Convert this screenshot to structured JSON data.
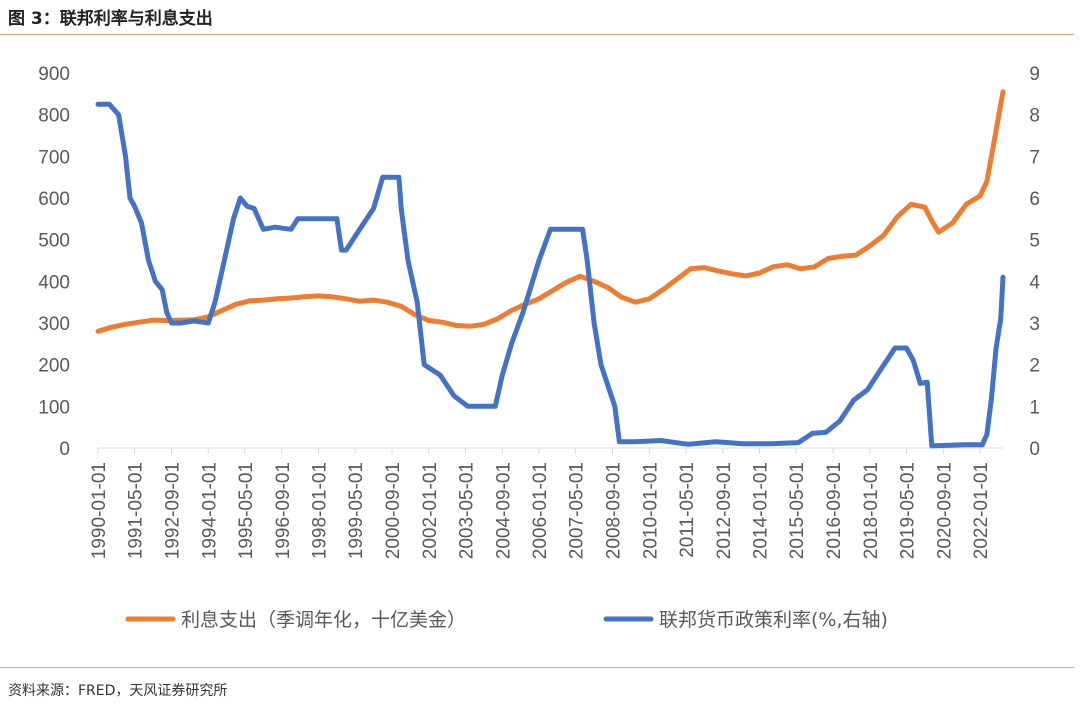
{
  "header": {
    "title": "图 3：联邦利率与利息支出"
  },
  "footer": {
    "source": "资料来源：FRED，天风证券研究所"
  },
  "chart_data": {
    "type": "line",
    "title": "图 3：联邦利率与利息支出",
    "y_left": {
      "min": 0,
      "max": 900,
      "ticks": [
        0,
        100,
        200,
        300,
        400,
        500,
        600,
        700,
        800,
        900
      ]
    },
    "y_right": {
      "min": 0,
      "max": 9,
      "ticks": [
        0,
        1,
        2,
        3,
        4,
        5,
        6,
        7,
        8,
        9
      ]
    },
    "x_range": [
      "1990-01-01",
      "2022-11-01"
    ],
    "x_tick_labels": [
      "1990-01-01",
      "1991-05-01",
      "1992-09-01",
      "1994-01-01",
      "1995-05-01",
      "1996-09-01",
      "1998-01-01",
      "1999-05-01",
      "2000-09-01",
      "2002-01-01",
      "2003-05-01",
      "2004-09-01",
      "2006-01-01",
      "2007-05-01",
      "2008-09-01",
      "2010-01-01",
      "2011-05-01",
      "2012-09-01",
      "2014-01-01",
      "2015-05-01",
      "2016-09-01",
      "2018-01-01",
      "2019-05-01",
      "2020-09-01",
      "2022-01-01"
    ],
    "grid": false,
    "legend_position": "bottom",
    "series": [
      {
        "name": "利息支出（季调年化，十亿美金）",
        "axis": "left",
        "color": "#ED7D31",
        "points": [
          [
            "1990-01-01",
            280
          ],
          [
            "1990-07-01",
            290
          ],
          [
            "1991-01-01",
            297
          ],
          [
            "1991-07-01",
            302
          ],
          [
            "1992-01-01",
            307
          ],
          [
            "1992-07-01",
            306
          ],
          [
            "1993-01-01",
            307
          ],
          [
            "1993-07-01",
            308
          ],
          [
            "1994-01-01",
            315
          ],
          [
            "1994-07-01",
            330
          ],
          [
            "1995-01-01",
            345
          ],
          [
            "1995-07-01",
            353
          ],
          [
            "1996-01-01",
            355
          ],
          [
            "1996-07-01",
            358
          ],
          [
            "1997-01-01",
            360
          ],
          [
            "1997-07-01",
            363
          ],
          [
            "1998-01-01",
            365
          ],
          [
            "1998-07-01",
            363
          ],
          [
            "1999-01-01",
            358
          ],
          [
            "1999-07-01",
            352
          ],
          [
            "2000-01-01",
            355
          ],
          [
            "2000-07-01",
            350
          ],
          [
            "2001-01-01",
            340
          ],
          [
            "2001-07-01",
            320
          ],
          [
            "2002-01-01",
            306
          ],
          [
            "2002-07-01",
            302
          ],
          [
            "2003-01-01",
            294
          ],
          [
            "2003-07-01",
            292
          ],
          [
            "2004-01-01",
            297
          ],
          [
            "2004-07-01",
            310
          ],
          [
            "2005-01-01",
            330
          ],
          [
            "2005-07-01",
            345
          ],
          [
            "2006-01-01",
            358
          ],
          [
            "2006-07-01",
            378
          ],
          [
            "2007-01-01",
            398
          ],
          [
            "2007-07-01",
            412
          ],
          [
            "2008-01-01",
            400
          ],
          [
            "2008-07-01",
            385
          ],
          [
            "2009-01-01",
            362
          ],
          [
            "2009-07-01",
            350
          ],
          [
            "2010-01-01",
            358
          ],
          [
            "2010-07-01",
            380
          ],
          [
            "2011-01-01",
            405
          ],
          [
            "2011-07-01",
            430
          ],
          [
            "2012-01-01",
            433
          ],
          [
            "2012-07-01",
            425
          ],
          [
            "2013-01-01",
            418
          ],
          [
            "2013-07-01",
            413
          ],
          [
            "2014-01-01",
            420
          ],
          [
            "2014-07-01",
            435
          ],
          [
            "2015-01-01",
            440
          ],
          [
            "2015-07-01",
            430
          ],
          [
            "2016-01-01",
            435
          ],
          [
            "2016-07-01",
            455
          ],
          [
            "2017-01-01",
            460
          ],
          [
            "2017-07-01",
            463
          ],
          [
            "2018-01-01",
            485
          ],
          [
            "2018-07-01",
            510
          ],
          [
            "2019-01-01",
            555
          ],
          [
            "2019-07-01",
            585
          ],
          [
            "2020-01-01",
            578
          ],
          [
            "2020-04-01",
            545
          ],
          [
            "2020-07-01",
            518
          ],
          [
            "2021-01-01",
            540
          ],
          [
            "2021-07-01",
            585
          ],
          [
            "2022-01-01",
            605
          ],
          [
            "2022-04-01",
            640
          ],
          [
            "2022-07-01",
            730
          ],
          [
            "2022-11-01",
            855
          ]
        ]
      },
      {
        "name": "联邦货币政策利率(%,右轴)",
        "axis": "right",
        "color": "#4472C4",
        "points": [
          [
            "1990-01-01",
            8.25
          ],
          [
            "1990-06-01",
            8.25
          ],
          [
            "1990-10-01",
            8.0
          ],
          [
            "1991-01-01",
            7.0
          ],
          [
            "1991-03-01",
            6.0
          ],
          [
            "1991-05-01",
            5.8
          ],
          [
            "1991-08-01",
            5.4
          ],
          [
            "1991-11-01",
            4.5
          ],
          [
            "1992-02-01",
            4.0
          ],
          [
            "1992-05-01",
            3.8
          ],
          [
            "1992-07-01",
            3.25
          ],
          [
            "1992-09-01",
            3.0
          ],
          [
            "1993-01-01",
            3.0
          ],
          [
            "1993-07-01",
            3.05
          ],
          [
            "1994-01-01",
            3.0
          ],
          [
            "1994-04-01",
            3.5
          ],
          [
            "1994-08-01",
            4.5
          ],
          [
            "1994-12-01",
            5.5
          ],
          [
            "1995-03-01",
            6.0
          ],
          [
            "1995-06-01",
            5.8
          ],
          [
            "1995-09-01",
            5.75
          ],
          [
            "1996-01-01",
            5.25
          ],
          [
            "1996-06-01",
            5.3
          ],
          [
            "1997-01-01",
            5.25
          ],
          [
            "1997-04-01",
            5.5
          ],
          [
            "1998-01-01",
            5.5
          ],
          [
            "1998-09-01",
            5.5
          ],
          [
            "1998-11-01",
            4.75
          ],
          [
            "1999-01-01",
            4.75
          ],
          [
            "1999-07-01",
            5.25
          ],
          [
            "2000-01-01",
            5.75
          ],
          [
            "2000-05-01",
            6.5
          ],
          [
            "2000-12-01",
            6.5
          ],
          [
            "2001-01-01",
            5.75
          ],
          [
            "2001-04-01",
            4.5
          ],
          [
            "2001-08-01",
            3.5
          ],
          [
            "2001-11-01",
            2.0
          ],
          [
            "2002-06-01",
            1.75
          ],
          [
            "2002-12-01",
            1.25
          ],
          [
            "2003-06-01",
            1.0
          ],
          [
            "2004-06-01",
            1.0
          ],
          [
            "2004-09-01",
            1.75
          ],
          [
            "2005-01-01",
            2.5
          ],
          [
            "2005-06-01",
            3.25
          ],
          [
            "2006-01-01",
            4.5
          ],
          [
            "2006-06-01",
            5.25
          ],
          [
            "2007-08-01",
            5.25
          ],
          [
            "2007-10-01",
            4.5
          ],
          [
            "2008-01-01",
            3.0
          ],
          [
            "2008-04-01",
            2.0
          ],
          [
            "2008-10-01",
            1.0
          ],
          [
            "2008-12-01",
            0.15
          ],
          [
            "2009-06-01",
            0.15
          ],
          [
            "2010-06-01",
            0.18
          ],
          [
            "2011-06-01",
            0.09
          ],
          [
            "2012-06-01",
            0.15
          ],
          [
            "2013-06-01",
            0.1
          ],
          [
            "2014-06-01",
            0.1
          ],
          [
            "2015-06-01",
            0.13
          ],
          [
            "2015-12-01",
            0.35
          ],
          [
            "2016-06-01",
            0.38
          ],
          [
            "2016-12-01",
            0.65
          ],
          [
            "2017-06-01",
            1.15
          ],
          [
            "2017-12-01",
            1.4
          ],
          [
            "2018-06-01",
            1.9
          ],
          [
            "2018-12-01",
            2.4
          ],
          [
            "2019-05-01",
            2.4
          ],
          [
            "2019-08-01",
            2.1
          ],
          [
            "2019-11-01",
            1.55
          ],
          [
            "2020-02-01",
            1.58
          ],
          [
            "2020-04-01",
            0.05
          ],
          [
            "2021-06-01",
            0.08
          ],
          [
            "2022-02-01",
            0.08
          ],
          [
            "2022-04-01",
            0.33
          ],
          [
            "2022-06-01",
            1.2
          ],
          [
            "2022-08-01",
            2.4
          ],
          [
            "2022-10-01",
            3.1
          ],
          [
            "2022-11-01",
            4.1
          ]
        ]
      }
    ]
  }
}
